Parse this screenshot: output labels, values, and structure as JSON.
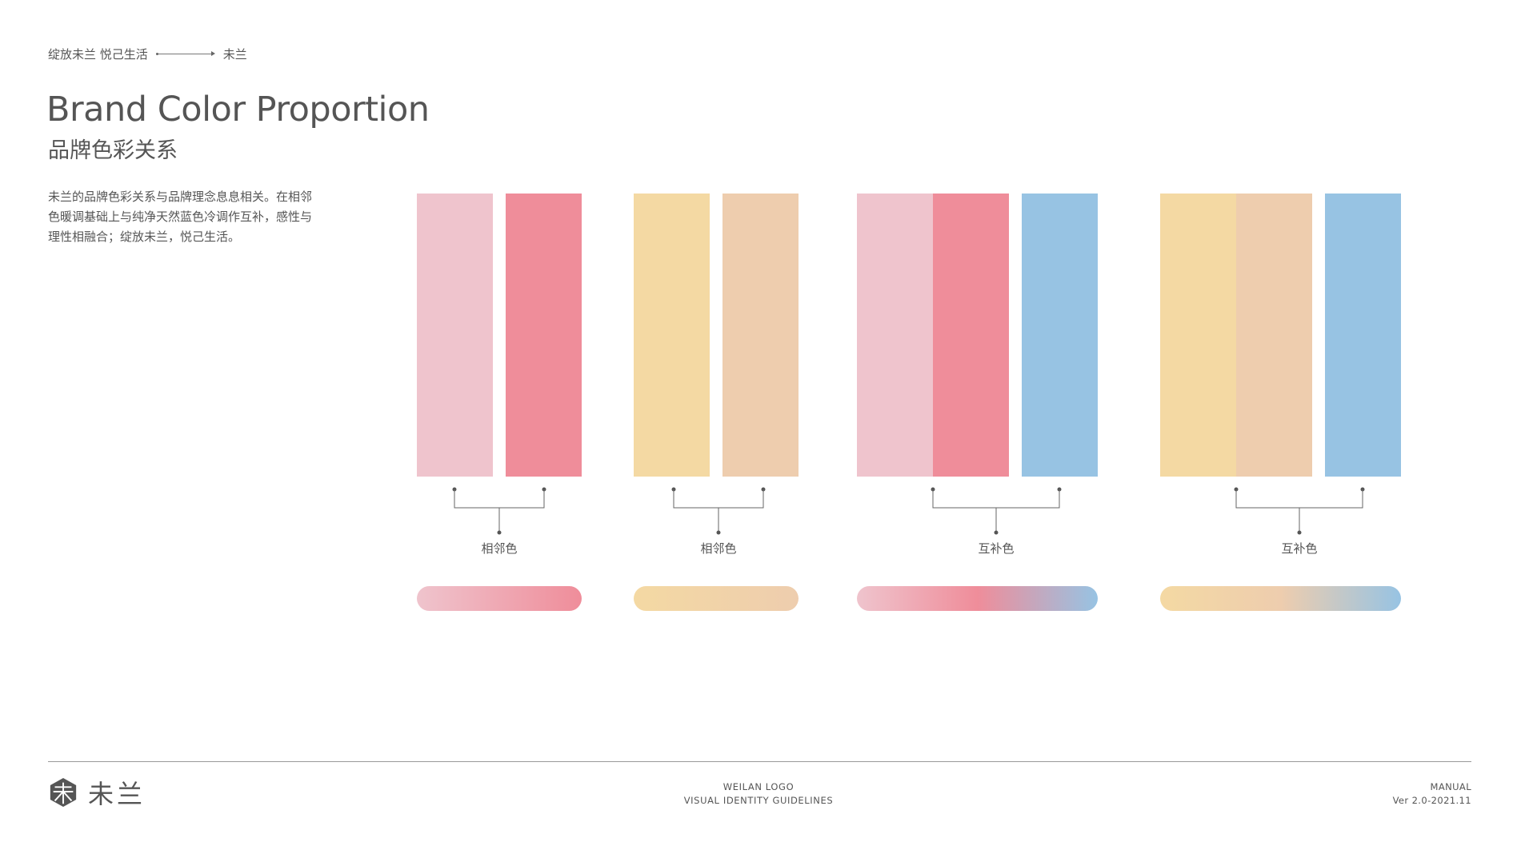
{
  "header": {
    "breadcrumb_left": "绽放未兰 悦己生活",
    "breadcrumb_right": "未兰"
  },
  "title": {
    "en": "Brand Color Proportion",
    "cn": "品牌色彩关系"
  },
  "description": {
    "lines": [
      "未兰的品牌色彩关系与品牌理念息息相关。在相邻",
      "色暖调基础上与纯净天然蓝色冷调作互补，感性与",
      "理性相融合；绽放未兰，悦己生活。"
    ]
  },
  "colors": {
    "light_pink": "#EFC4CD",
    "pink": "#EF8D9A",
    "cream_yellow": "#F4D9A3",
    "peach": "#EECDAE",
    "sky_blue": "#97C3E3"
  },
  "groups": [
    {
      "label": "相邻色",
      "swatches": [
        "#EFC4CD",
        "#EF8D9A"
      ],
      "gradient": [
        "#EFC4CD",
        "#EF8D9A"
      ]
    },
    {
      "label": "相邻色",
      "swatches": [
        "#F4D9A3",
        "#EECDAE"
      ],
      "gradient": [
        "#F4D9A3",
        "#EECDAE"
      ]
    },
    {
      "label": "互补色",
      "swatches": [
        "#EFC4CD",
        "#EF8D9A",
        "#97C3E3"
      ],
      "gradient": [
        "#EFC4CD",
        "#EF8D9A",
        "#97C3E3"
      ]
    },
    {
      "label": "互补色",
      "swatches": [
        "#F4D9A3",
        "#EECDAE",
        "#97C3E3"
      ],
      "gradient": [
        "#F4D9A3",
        "#EECDAE",
        "#97C3E3"
      ]
    }
  ],
  "footer": {
    "brand_name": "未兰",
    "logo_icon": "weilan-logo-icon",
    "center_line1": "WEILAN LOGO",
    "center_line2": "VISUAL IDENTITY GUIDELINES",
    "right_line1": "MANUAL",
    "right_line2": "Ver 2.0-2021.11"
  }
}
